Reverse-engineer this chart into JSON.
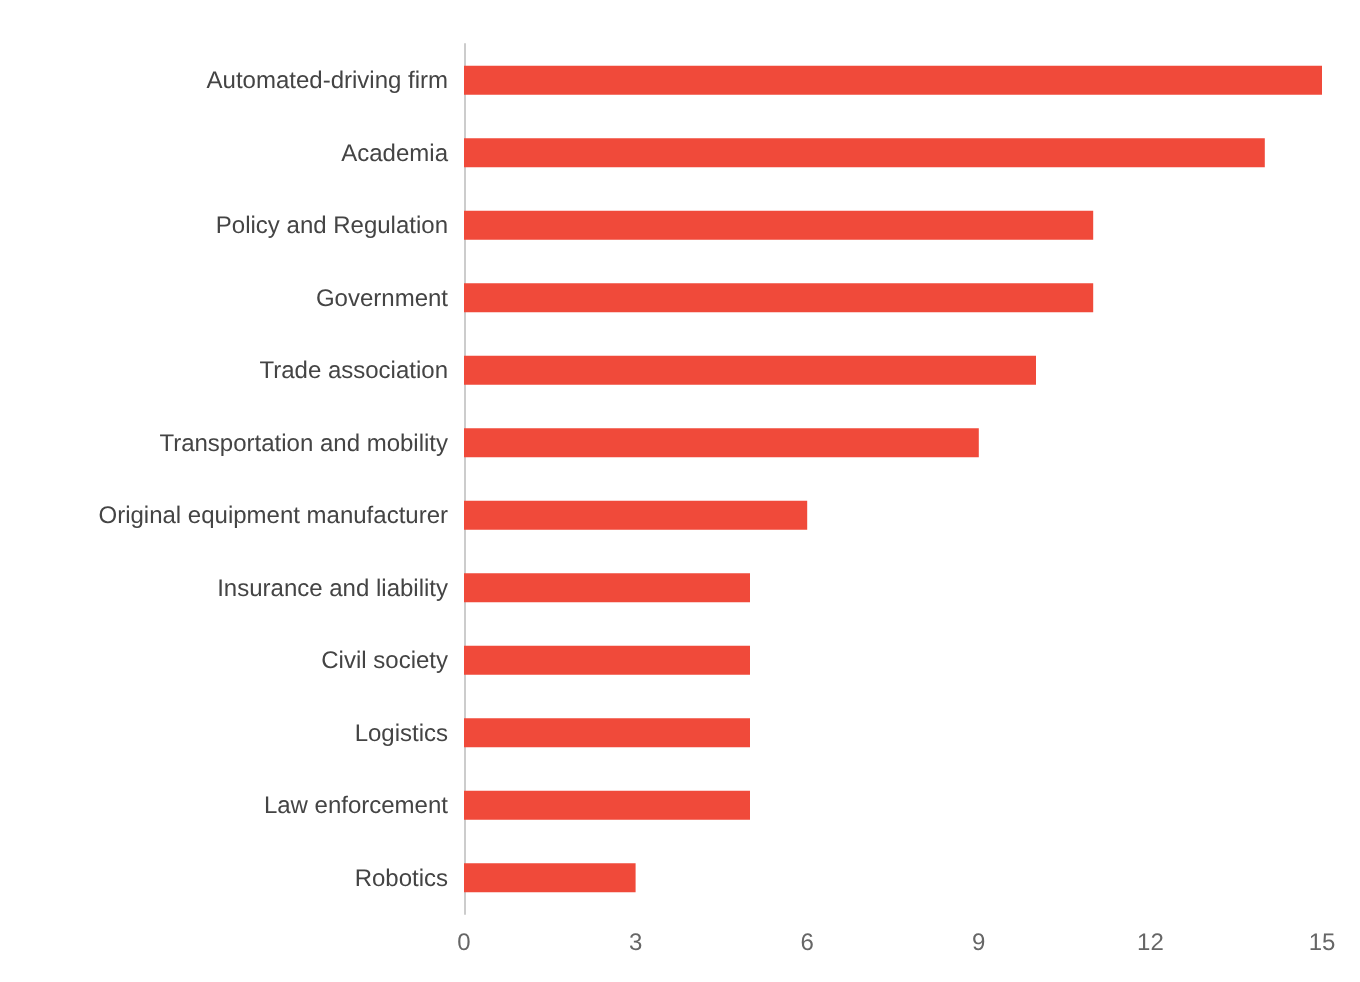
{
  "chart_data": {
    "type": "bar",
    "orientation": "horizontal",
    "categories": [
      "Automated-driving firm",
      "Academia",
      "Policy and Regulation",
      "Government",
      "Trade association",
      "Transportation and mobility",
      "Original equipment manufacturer",
      "Insurance and liability",
      "Civil society",
      "Logistics",
      "Law enforcement",
      "Robotics"
    ],
    "values": [
      15,
      14,
      11,
      11,
      10,
      9,
      6,
      5,
      5,
      5,
      5,
      3
    ],
    "color": "#f04a3a",
    "xlim": [
      0,
      15
    ],
    "xticks": [
      0,
      3,
      6,
      9,
      12,
      15
    ]
  }
}
